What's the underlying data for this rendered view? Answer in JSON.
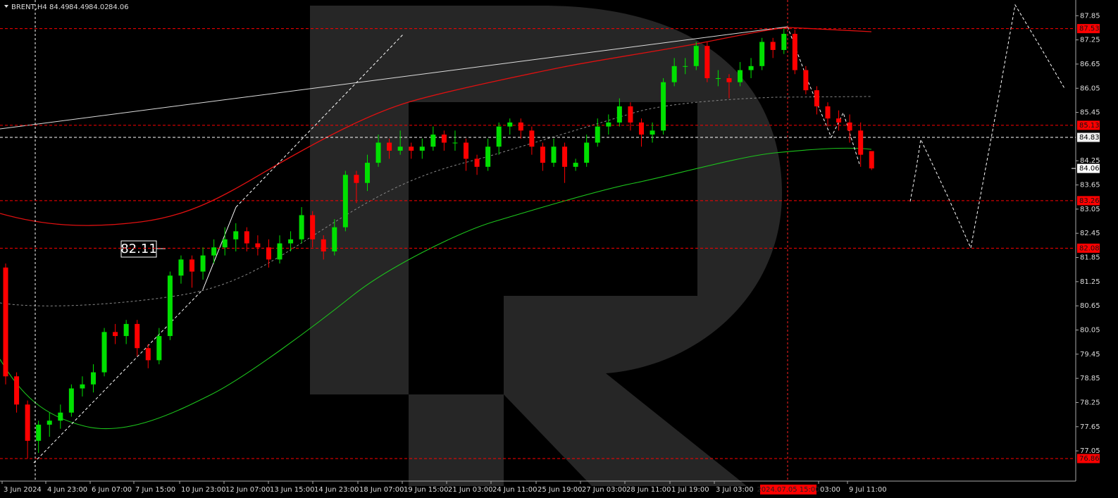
{
  "chart_data": {
    "type": "candlestick",
    "symbol": "BRENT,H4",
    "ylim": [
      76.3,
      88.24
    ],
    "yticks": [
      87.85,
      87.25,
      86.65,
      86.05,
      85.45,
      84.25,
      83.65,
      83.05,
      82.45,
      81.85,
      81.25,
      80.65,
      80.05,
      79.45,
      78.85,
      78.25,
      77.65,
      77.05
    ],
    "xticks": [
      "3 Jun 2024",
      "4 Jun 23:00",
      "6 Jun 07:00",
      "7 Jun 15:00",
      "10 Jun 23:00",
      "12 Jun 07:00",
      "13 Jun 15:00",
      "14 Jun 23:00",
      "18 Jun 07:00",
      "19 Jun 15:00",
      "21 Jun 03:00",
      "24 Jun 11:00",
      "25 Jun 19:00",
      "27 Jun 03:00",
      "28 Jun 11:00",
      "1 Jul 19:00",
      "3 Jul 03:00",
      "03:00",
      "9 Jul 11:00"
    ],
    "up_color": "#00e000",
    "down_color": "#ff0000",
    "ohlc": [
      [
        81.6,
        81.7,
        78.7,
        78.9
      ],
      [
        78.9,
        79.0,
        78.0,
        78.2
      ],
      [
        78.2,
        78.3,
        76.86,
        77.3
      ],
      [
        77.3,
        77.8,
        77.0,
        77.7
      ],
      [
        77.7,
        78.0,
        77.4,
        77.8
      ],
      [
        77.8,
        78.2,
        77.6,
        78.0
      ],
      [
        78.0,
        78.7,
        77.9,
        78.6
      ],
      [
        78.6,
        78.9,
        78.4,
        78.7
      ],
      [
        78.7,
        79.2,
        78.5,
        79.0
      ],
      [
        79.0,
        80.1,
        78.9,
        80.0
      ],
      [
        80.0,
        80.2,
        79.7,
        79.9
      ],
      [
        79.9,
        80.3,
        79.7,
        80.2
      ],
      [
        80.2,
        80.3,
        79.4,
        79.6
      ],
      [
        79.6,
        79.7,
        79.1,
        79.3
      ],
      [
        79.3,
        80.1,
        79.2,
        79.9
      ],
      [
        79.9,
        81.5,
        79.8,
        81.4
      ],
      [
        81.4,
        81.9,
        81.2,
        81.8
      ],
      [
        81.8,
        81.9,
        81.1,
        81.5
      ],
      [
        81.5,
        82.1,
        81.3,
        81.9
      ],
      [
        81.9,
        82.3,
        81.7,
        82.1
      ],
      [
        82.1,
        82.6,
        81.9,
        82.3
      ],
      [
        82.3,
        82.7,
        82.0,
        82.5
      ],
      [
        82.5,
        82.6,
        82.0,
        82.2
      ],
      [
        82.2,
        82.4,
        81.9,
        82.1
      ],
      [
        82.1,
        82.3,
        81.6,
        81.8
      ],
      [
        81.8,
        82.4,
        81.7,
        82.2
      ],
      [
        82.2,
        82.5,
        82.0,
        82.3
      ],
      [
        82.3,
        83.1,
        82.2,
        82.9
      ],
      [
        82.9,
        83.0,
        82.1,
        82.3
      ],
      [
        82.3,
        82.4,
        81.8,
        82.0
      ],
      [
        82.0,
        82.8,
        81.9,
        82.6
      ],
      [
        82.6,
        84.0,
        82.5,
        83.9
      ],
      [
        83.9,
        84.0,
        83.2,
        83.7
      ],
      [
        83.7,
        84.4,
        83.5,
        84.2
      ],
      [
        84.2,
        84.9,
        84.1,
        84.7
      ],
      [
        84.7,
        84.8,
        84.3,
        84.5
      ],
      [
        84.5,
        85.0,
        84.4,
        84.6
      ],
      [
        84.6,
        84.7,
        84.3,
        84.5
      ],
      [
        84.5,
        84.8,
        84.3,
        84.6
      ],
      [
        84.6,
        85.1,
        84.5,
        84.9
      ],
      [
        84.9,
        85.0,
        84.5,
        84.7
      ],
      [
        84.7,
        85.0,
        84.5,
        84.7
      ],
      [
        84.7,
        84.8,
        84.0,
        84.3
      ],
      [
        84.3,
        84.4,
        83.9,
        84.1
      ],
      [
        84.1,
        84.8,
        84.0,
        84.6
      ],
      [
        84.6,
        85.2,
        84.4,
        85.1
      ],
      [
        85.1,
        85.3,
        84.9,
        85.2
      ],
      [
        85.2,
        85.3,
        84.8,
        85.0
      ],
      [
        85.0,
        85.1,
        84.4,
        84.6
      ],
      [
        84.6,
        84.7,
        84.0,
        84.2
      ],
      [
        84.2,
        84.8,
        84.1,
        84.6
      ],
      [
        84.6,
        84.7,
        83.7,
        84.1
      ],
      [
        84.1,
        84.3,
        84.0,
        84.2
      ],
      [
        84.2,
        84.9,
        84.1,
        84.7
      ],
      [
        84.7,
        85.3,
        84.6,
        85.1
      ],
      [
        85.1,
        85.4,
        84.9,
        85.2
      ],
      [
        85.2,
        85.8,
        85.1,
        85.6
      ],
      [
        85.6,
        85.7,
        85.0,
        85.2
      ],
      [
        85.2,
        85.3,
        84.6,
        84.9
      ],
      [
        84.9,
        85.2,
        84.7,
        85.0
      ],
      [
        85.0,
        86.3,
        84.9,
        86.2
      ],
      [
        86.2,
        86.8,
        86.1,
        86.6
      ],
      [
        86.6,
        86.8,
        86.4,
        86.6
      ],
      [
        86.6,
        87.2,
        86.5,
        87.1
      ],
      [
        87.1,
        87.2,
        86.2,
        86.3
      ],
      [
        86.3,
        86.5,
        86.1,
        86.3
      ],
      [
        86.3,
        86.4,
        85.8,
        86.2
      ],
      [
        86.2,
        86.7,
        86.1,
        86.5
      ],
      [
        86.5,
        86.8,
        86.3,
        86.6
      ],
      [
        86.6,
        87.3,
        86.5,
        87.2
      ],
      [
        87.2,
        87.3,
        86.8,
        87.0
      ],
      [
        87.0,
        87.53,
        86.9,
        87.4
      ],
      [
        87.4,
        87.5,
        86.4,
        86.5
      ],
      [
        86.5,
        86.6,
        85.9,
        86.0
      ],
      [
        86.0,
        86.1,
        85.4,
        85.6
      ],
      [
        85.6,
        85.7,
        85.1,
        85.3
      ],
      [
        85.3,
        85.5,
        85.0,
        85.2
      ],
      [
        85.2,
        85.4,
        84.7,
        85.0
      ],
      [
        85.0,
        85.2,
        84.1,
        84.4
      ],
      [
        84.49,
        84.49,
        84.02,
        84.06
      ]
    ],
    "levels": [
      {
        "value": 87.53,
        "color": "#ff0000"
      },
      {
        "value": 85.13,
        "color": "#ff0000"
      },
      {
        "value": 83.26,
        "color": "#ff0000"
      },
      {
        "value": 82.08,
        "color": "#ff0000"
      },
      {
        "value": 76.86,
        "color": "#ff0000"
      }
    ],
    "crosshair": {
      "price": 84.83,
      "time": "2024.07.05 15:00"
    },
    "current": 84.06,
    "annotation": 82.11
  }
}
